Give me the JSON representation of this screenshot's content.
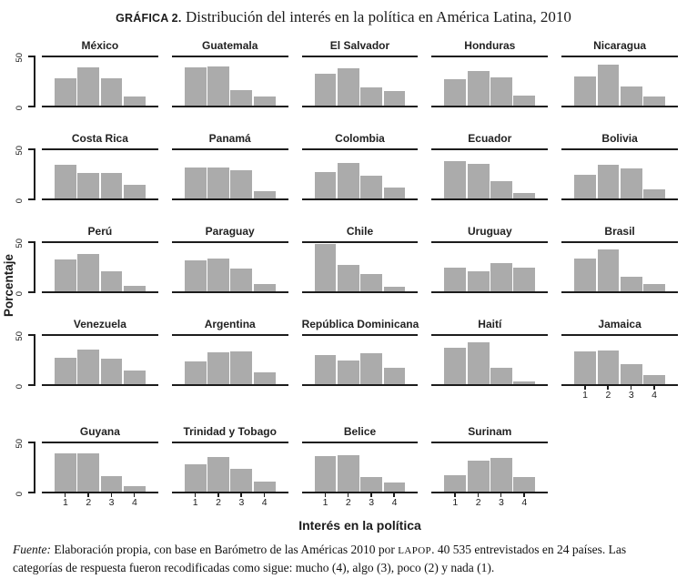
{
  "figure": {
    "label": "GRÁFICA 2.",
    "title": "Distribución del interés en la política en América Latina, 2010"
  },
  "axes": {
    "ylabel": "Porcentaje",
    "xlabel": "Interés en la política",
    "y_tick_top": "50",
    "y_tick_bottom": "0",
    "x_tick_labels": [
      "1",
      "2",
      "3",
      "4"
    ]
  },
  "footnote": {
    "fuente_label": "Fuente:",
    "part1": " Elaboración propia, con base en Barómetro de las Américas 2010 por ",
    "lapop": "LAPOP",
    "part2": ". 40 535 entrevistados en 24 países. Las categorías de respuesta fueron recodificadas como sigue: mucho (4), algo (3), poco (2) y nada (1)."
  },
  "colors": {
    "bar": "#ababab",
    "axis": "#1c1c1c"
  },
  "chart_data": {
    "type": "bar",
    "title": "Distribución del interés en la política en América Latina, 2010",
    "xlabel": "Interés en la política",
    "ylabel": "Porcentaje",
    "categories": [
      "1",
      "2",
      "3",
      "4"
    ],
    "ylim": [
      0,
      50
    ],
    "y_ticks_shown": [
      0,
      50
    ],
    "grid": false,
    "legend": "none",
    "panels": [
      {
        "country": "México",
        "values": [
          28,
          40,
          28,
          9
        ]
      },
      {
        "country": "Guatemala",
        "values": [
          40,
          41,
          16,
          9
        ]
      },
      {
        "country": "El Salvador",
        "values": [
          33,
          39,
          19,
          15
        ]
      },
      {
        "country": "Honduras",
        "values": [
          27,
          36,
          29,
          10
        ]
      },
      {
        "country": "Nicaragua",
        "values": [
          30,
          42,
          20,
          9
        ]
      },
      {
        "country": "Costa Rica",
        "values": [
          35,
          26,
          26,
          14
        ]
      },
      {
        "country": "Panamá",
        "values": [
          32,
          32,
          29,
          8
        ]
      },
      {
        "country": "Colombia",
        "values": [
          27,
          37,
          24,
          11
        ]
      },
      {
        "country": "Ecuador",
        "values": [
          39,
          36,
          18,
          6
        ]
      },
      {
        "country": "Bolivia",
        "values": [
          25,
          35,
          31,
          9
        ]
      },
      {
        "country": "Perú",
        "values": [
          33,
          39,
          21,
          6
        ]
      },
      {
        "country": "Paraguay",
        "values": [
          32,
          34,
          24,
          8
        ]
      },
      {
        "country": "Chile",
        "values": [
          49,
          27,
          18,
          5
        ]
      },
      {
        "country": "Uruguay",
        "values": [
          25,
          21,
          29,
          25
        ]
      },
      {
        "country": "Brasil",
        "values": [
          34,
          43,
          15,
          8
        ]
      },
      {
        "country": "Venezuela",
        "values": [
          27,
          36,
          26,
          14
        ]
      },
      {
        "country": "Argentina",
        "values": [
          24,
          33,
          34,
          12
        ]
      },
      {
        "country": "República Dominicana",
        "values": [
          30,
          25,
          32,
          17
        ]
      },
      {
        "country": "Haití",
        "values": [
          38,
          43,
          17,
          3
        ]
      },
      {
        "country": "Jamaica",
        "values": [
          34,
          35,
          21,
          9
        ]
      },
      {
        "country": "Guyana",
        "values": [
          40,
          40,
          16,
          6
        ]
      },
      {
        "country": "Trinidad y Tobago",
        "values": [
          28,
          36,
          24,
          10
        ]
      },
      {
        "country": "Belice",
        "values": [
          37,
          38,
          15,
          9
        ]
      },
      {
        "country": "Surinam",
        "values": [
          17,
          32,
          35,
          15
        ]
      }
    ]
  }
}
